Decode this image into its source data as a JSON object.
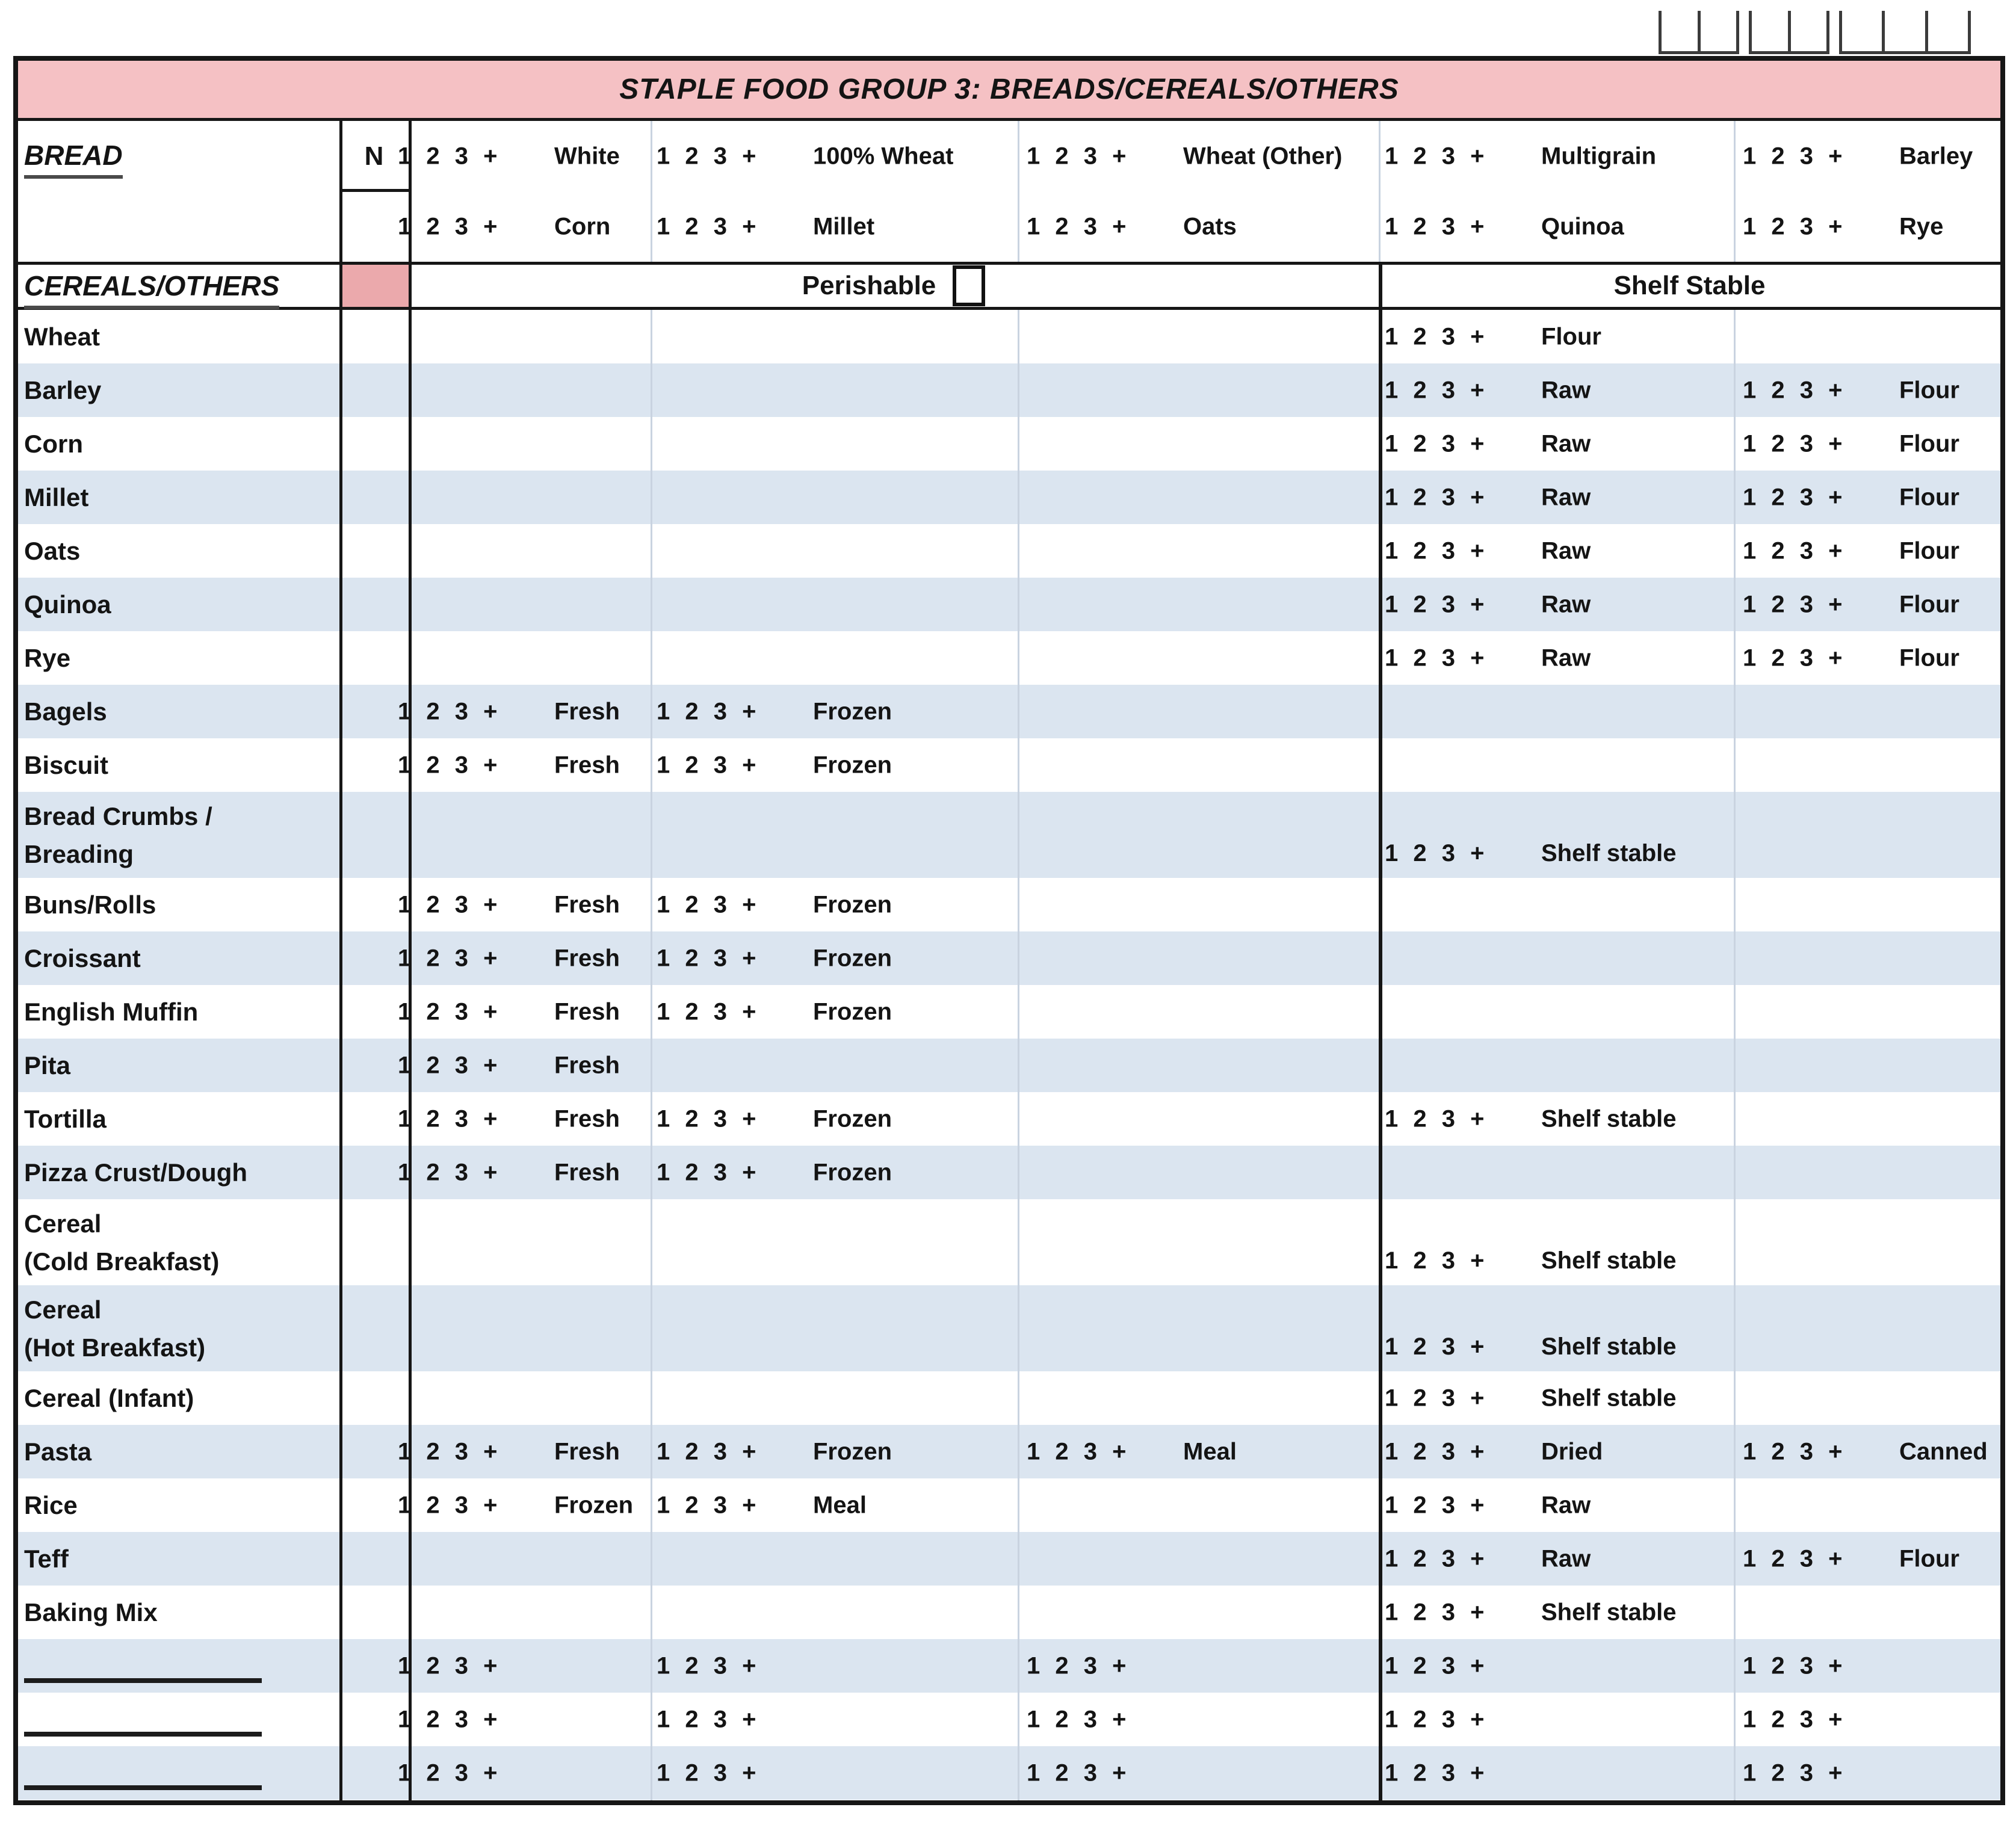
{
  "title": "STAPLE FOOD GROUP 3: BREADS/CEREALS/OTHERS",
  "rating_label": "1 2 3 +",
  "digit_boxes": {
    "groups": [
      {
        "cells": 2
      },
      {
        "cells": 2
      },
      {
        "cells": 3
      }
    ]
  },
  "bread": {
    "label": "BREAD",
    "n_label": "N",
    "rows": [
      {
        "entries": [
          {
            "slot": "p1",
            "label": "White"
          },
          {
            "slot": "p2",
            "label": "100% Wheat"
          },
          {
            "slot": "p3",
            "label": "Wheat (Other)"
          },
          {
            "slot": "s1",
            "label": "Multigrain"
          },
          {
            "slot": "s2",
            "label": "Barley"
          }
        ]
      },
      {
        "entries": [
          {
            "slot": "p1",
            "label": "Corn"
          },
          {
            "slot": "p2",
            "label": "Millet"
          },
          {
            "slot": "p3",
            "label": "Oats"
          },
          {
            "slot": "s1",
            "label": "Quinoa"
          },
          {
            "slot": "s2",
            "label": "Rye"
          }
        ]
      }
    ]
  },
  "sections": {
    "label": "CEREALS/OTHERS",
    "perishable_label": "Perishable",
    "shelf_label": "Shelf Stable"
  },
  "rows": [
    {
      "name": "Wheat",
      "entries": [
        {
          "slot": "s1",
          "label": "Flour"
        }
      ]
    },
    {
      "name": "Barley",
      "entries": [
        {
          "slot": "s1",
          "label": "Raw"
        },
        {
          "slot": "s2",
          "label": "Flour"
        }
      ]
    },
    {
      "name": "Corn",
      "entries": [
        {
          "slot": "s1",
          "label": "Raw"
        },
        {
          "slot": "s2",
          "label": "Flour"
        }
      ]
    },
    {
      "name": "Millet",
      "entries": [
        {
          "slot": "s1",
          "label": "Raw"
        },
        {
          "slot": "s2",
          "label": "Flour"
        }
      ]
    },
    {
      "name": "Oats",
      "entries": [
        {
          "slot": "s1",
          "label": "Raw"
        },
        {
          "slot": "s2",
          "label": "Flour"
        }
      ]
    },
    {
      "name": "Quinoa",
      "entries": [
        {
          "slot": "s1",
          "label": "Raw"
        },
        {
          "slot": "s2",
          "label": "Flour"
        }
      ]
    },
    {
      "name": "Rye",
      "entries": [
        {
          "slot": "s1",
          "label": "Raw"
        },
        {
          "slot": "s2",
          "label": "Flour"
        }
      ]
    },
    {
      "name": "Bagels",
      "entries": [
        {
          "slot": "p1",
          "label": "Fresh"
        },
        {
          "slot": "p2",
          "label": "Frozen"
        }
      ]
    },
    {
      "name": "Biscuit",
      "entries": [
        {
          "slot": "p1",
          "label": "Fresh"
        },
        {
          "slot": "p2",
          "label": "Frozen"
        }
      ]
    },
    {
      "name": "Bread Crumbs /\nBreading",
      "entries": [
        {
          "slot": "s1",
          "label": "Shelf stable"
        }
      ]
    },
    {
      "name": "Buns/Rolls",
      "entries": [
        {
          "slot": "p1",
          "label": "Fresh"
        },
        {
          "slot": "p2",
          "label": "Frozen"
        }
      ]
    },
    {
      "name": "Croissant",
      "entries": [
        {
          "slot": "p1",
          "label": "Fresh"
        },
        {
          "slot": "p2",
          "label": "Frozen"
        }
      ]
    },
    {
      "name": "English Muffin",
      "entries": [
        {
          "slot": "p1",
          "label": "Fresh"
        },
        {
          "slot": "p2",
          "label": "Frozen"
        }
      ]
    },
    {
      "name": "Pita",
      "entries": [
        {
          "slot": "p1",
          "label": "Fresh"
        }
      ]
    },
    {
      "name": "Tortilla",
      "entries": [
        {
          "slot": "p1",
          "label": "Fresh"
        },
        {
          "slot": "p2",
          "label": "Frozen"
        },
        {
          "slot": "s1",
          "label": "Shelf stable"
        }
      ]
    },
    {
      "name": "Pizza Crust/Dough",
      "entries": [
        {
          "slot": "p1",
          "label": "Fresh"
        },
        {
          "slot": "p2",
          "label": "Frozen"
        }
      ]
    },
    {
      "name": "Cereal\n(Cold Breakfast)",
      "entries": [
        {
          "slot": "s1",
          "label": "Shelf stable"
        }
      ]
    },
    {
      "name": "Cereal\n(Hot Breakfast)",
      "entries": [
        {
          "slot": "s1",
          "label": "Shelf stable"
        }
      ]
    },
    {
      "name": "Cereal (Infant)",
      "entries": [
        {
          "slot": "s1",
          "label": "Shelf stable"
        }
      ]
    },
    {
      "name": "Pasta",
      "entries": [
        {
          "slot": "p1",
          "label": "Fresh"
        },
        {
          "slot": "p2",
          "label": "Frozen"
        },
        {
          "slot": "p3",
          "label": "Meal"
        },
        {
          "slot": "s1",
          "label": "Dried"
        },
        {
          "slot": "s2",
          "label": "Canned"
        }
      ]
    },
    {
      "name": "Rice",
      "entries": [
        {
          "slot": "p1",
          "label": "Frozen"
        },
        {
          "slot": "p2",
          "label": "Meal"
        },
        {
          "slot": "s1",
          "label": "Raw"
        }
      ]
    },
    {
      "name": "Teff",
      "entries": [
        {
          "slot": "s1",
          "label": "Raw"
        },
        {
          "slot": "s2",
          "label": "Flour"
        }
      ]
    },
    {
      "name": "Baking Mix",
      "entries": [
        {
          "slot": "s1",
          "label": "Shelf stable"
        }
      ]
    },
    {
      "name": "",
      "entries": [
        {
          "slot": "p1",
          "label": ""
        },
        {
          "slot": "p2",
          "label": ""
        },
        {
          "slot": "p3",
          "label": ""
        },
        {
          "slot": "s1",
          "label": ""
        },
        {
          "slot": "s2",
          "label": ""
        }
      ]
    },
    {
      "name": "",
      "entries": [
        {
          "slot": "p1",
          "label": ""
        },
        {
          "slot": "p2",
          "label": ""
        },
        {
          "slot": "p3",
          "label": ""
        },
        {
          "slot": "s1",
          "label": ""
        },
        {
          "slot": "s2",
          "label": ""
        }
      ]
    },
    {
      "name": "",
      "entries": [
        {
          "slot": "p1",
          "label": ""
        },
        {
          "slot": "p2",
          "label": ""
        },
        {
          "slot": "p3",
          "label": ""
        },
        {
          "slot": "s1",
          "label": ""
        },
        {
          "slot": "s2",
          "label": ""
        }
      ]
    }
  ],
  "colors": {
    "banner_pink": "#f5c1c4",
    "cell_pink": "#eba9ac",
    "stripe_blue": "#dbe5f0"
  }
}
